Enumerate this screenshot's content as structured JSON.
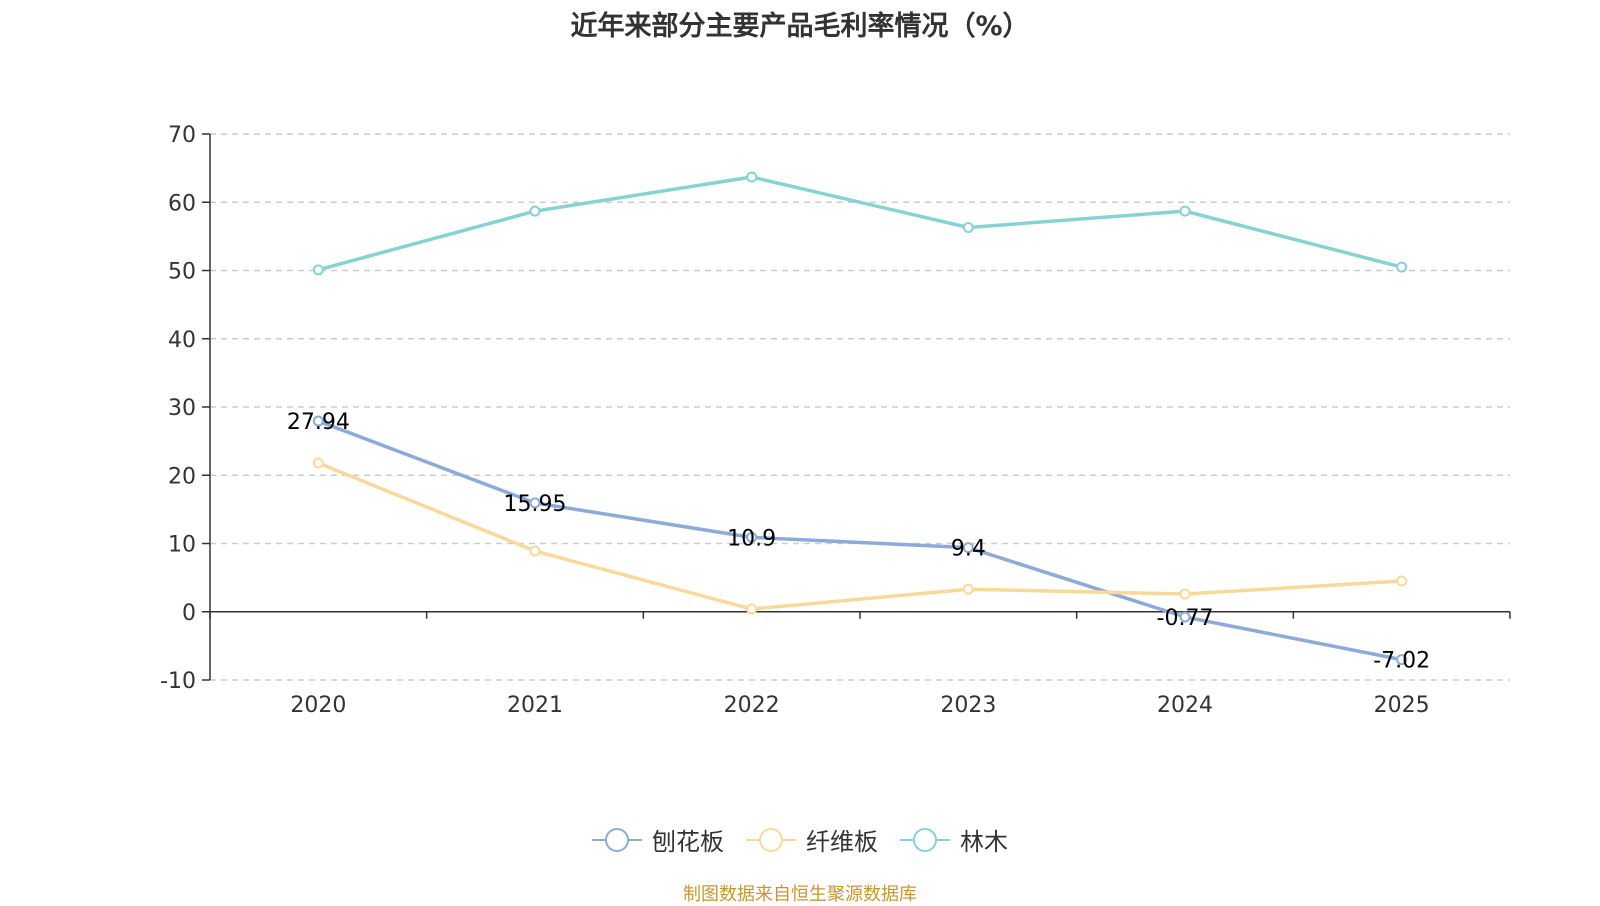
{
  "chart_data": {
    "type": "line",
    "title": "近年来部分主要产品毛利率情况（%）",
    "categories": [
      "2020",
      "2021",
      "2022",
      "2023",
      "2024",
      "2025"
    ],
    "ylim": [
      -10,
      70
    ],
    "yticks": [
      -10,
      0,
      10,
      20,
      30,
      40,
      50,
      60,
      70
    ],
    "grid": true,
    "legend_position": "bottom-center",
    "series": [
      {
        "name": "刨花板",
        "color": "#8eaad8",
        "values": [
          27.94,
          15.95,
          10.9,
          9.4,
          -0.77,
          -7.02
        ],
        "labels": [
          "27.94",
          "15.95",
          "10.9",
          "9.4",
          "-0.77",
          "-7.02"
        ]
      },
      {
        "name": "纤维板",
        "color": "#f9d99a",
        "values": [
          21.8,
          8.9,
          0.4,
          3.3,
          2.6,
          4.5
        ],
        "labels": null
      },
      {
        "name": "林木",
        "color": "#86d2d5",
        "values": [
          50.1,
          58.7,
          63.7,
          56.3,
          58.7,
          50.5
        ],
        "labels": null
      }
    ]
  },
  "source": "制图数据来自恒生聚源数据库"
}
